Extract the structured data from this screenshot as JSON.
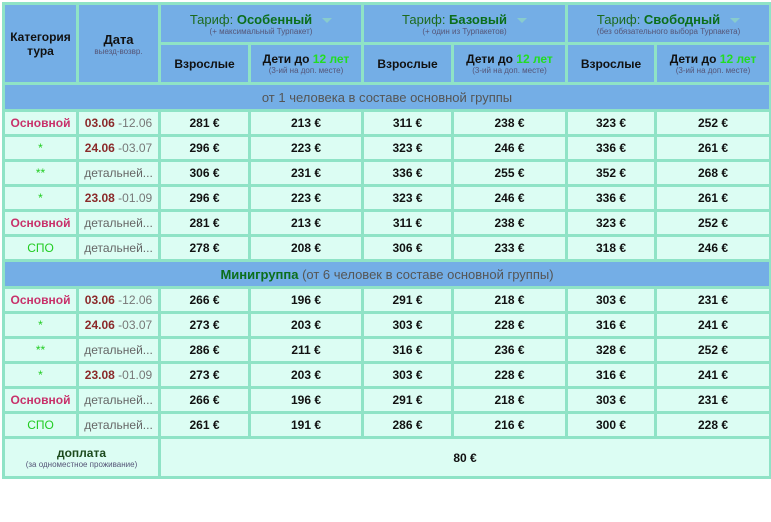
{
  "header": {
    "category": "Категория тура",
    "date": "Дата",
    "date_sub": "выезд-возвр.",
    "tariffs": [
      {
        "prefix": "Тариф: ",
        "name": "Особенный",
        "sub": "(+ максимальный Турпакет)"
      },
      {
        "prefix": "Тариф: ",
        "name": "Базовый",
        "sub": "(+ один из Турпакетов)"
      },
      {
        "prefix": "Тариф: ",
        "name": "Свободный",
        "sub": "(без обязательного выбора Турпакета)"
      }
    ],
    "adults": "Взрослые",
    "children": "Дети до ",
    "children_age": "12 лет",
    "children_sub": "(3-ий на доп. месте)"
  },
  "groups": [
    {
      "title": "",
      "subtitle": "от 1 человека в составе основной группы",
      "rows": [
        {
          "cat": "Основной",
          "cat_color": "red",
          "d1": "03.06",
          "d2": " -12.06",
          "prices": [
            "281 €",
            "213 €",
            "311 €",
            "238 €",
            "323 €",
            "252 €"
          ]
        },
        {
          "cat": "*",
          "cat_color": "green",
          "d1": "24.06",
          "d2": " -03.07",
          "prices": [
            "296 €",
            "223 €",
            "323 €",
            "246 €",
            "336 €",
            "261 €"
          ]
        },
        {
          "cat": "**",
          "cat_color": "green",
          "link": "детальней...",
          "prices": [
            "306 €",
            "231 €",
            "336 €",
            "255 €",
            "352 €",
            "268 €"
          ]
        },
        {
          "cat": "*",
          "cat_color": "green",
          "d1": "23.08",
          "d2": " -01.09",
          "prices": [
            "296 €",
            "223 €",
            "323 €",
            "246 €",
            "336 €",
            "261 €"
          ]
        },
        {
          "cat": "Основной",
          "cat_color": "red",
          "link": "детальней...",
          "prices": [
            "281 €",
            "213 €",
            "311 €",
            "238 €",
            "323 €",
            "252 €"
          ]
        },
        {
          "cat": "СПО",
          "cat_color": "green",
          "link": "детальней...",
          "prices": [
            "278 €",
            "208 €",
            "306 €",
            "233 €",
            "318 €",
            "246 €"
          ]
        }
      ]
    },
    {
      "title": "Минигруппа",
      "subtitle": " (от 6 человек в составе основной группы)",
      "rows": [
        {
          "cat": "Основной",
          "cat_color": "red",
          "d1": "03.06",
          "d2": " -12.06",
          "prices": [
            "266 €",
            "196 €",
            "291 €",
            "218 €",
            "303 €",
            "231 €"
          ]
        },
        {
          "cat": "*",
          "cat_color": "green",
          "d1": "24.06",
          "d2": " -03.07",
          "prices": [
            "273 €",
            "203 €",
            "303 €",
            "228 €",
            "316 €",
            "241 €"
          ]
        },
        {
          "cat": "**",
          "cat_color": "green",
          "link": "детальней...",
          "prices": [
            "286 €",
            "211 €",
            "316 €",
            "236 €",
            "328 €",
            "252 €"
          ]
        },
        {
          "cat": "*",
          "cat_color": "green",
          "d1": "23.08",
          "d2": " -01.09",
          "prices": [
            "273 €",
            "203 €",
            "303 €",
            "228 €",
            "316 €",
            "241 €"
          ]
        },
        {
          "cat": "Основной",
          "cat_color": "red",
          "link": "детальней...",
          "prices": [
            "266 €",
            "196 €",
            "291 €",
            "218 €",
            "303 €",
            "231 €"
          ]
        },
        {
          "cat": "СПО",
          "cat_color": "green",
          "link": "детальней...",
          "prices": [
            "261 €",
            "191 €",
            "286 €",
            "216 €",
            "300 €",
            "228 €"
          ]
        }
      ]
    }
  ],
  "footer": {
    "label": "доплата",
    "sub": "(за одноместное проживание)",
    "value": "80 €"
  },
  "colors": {
    "header": "#74aee6",
    "body": "#dcfdf3",
    "border": "#8fe3c6",
    "red": "#c8316a",
    "green": "#22cc22"
  }
}
